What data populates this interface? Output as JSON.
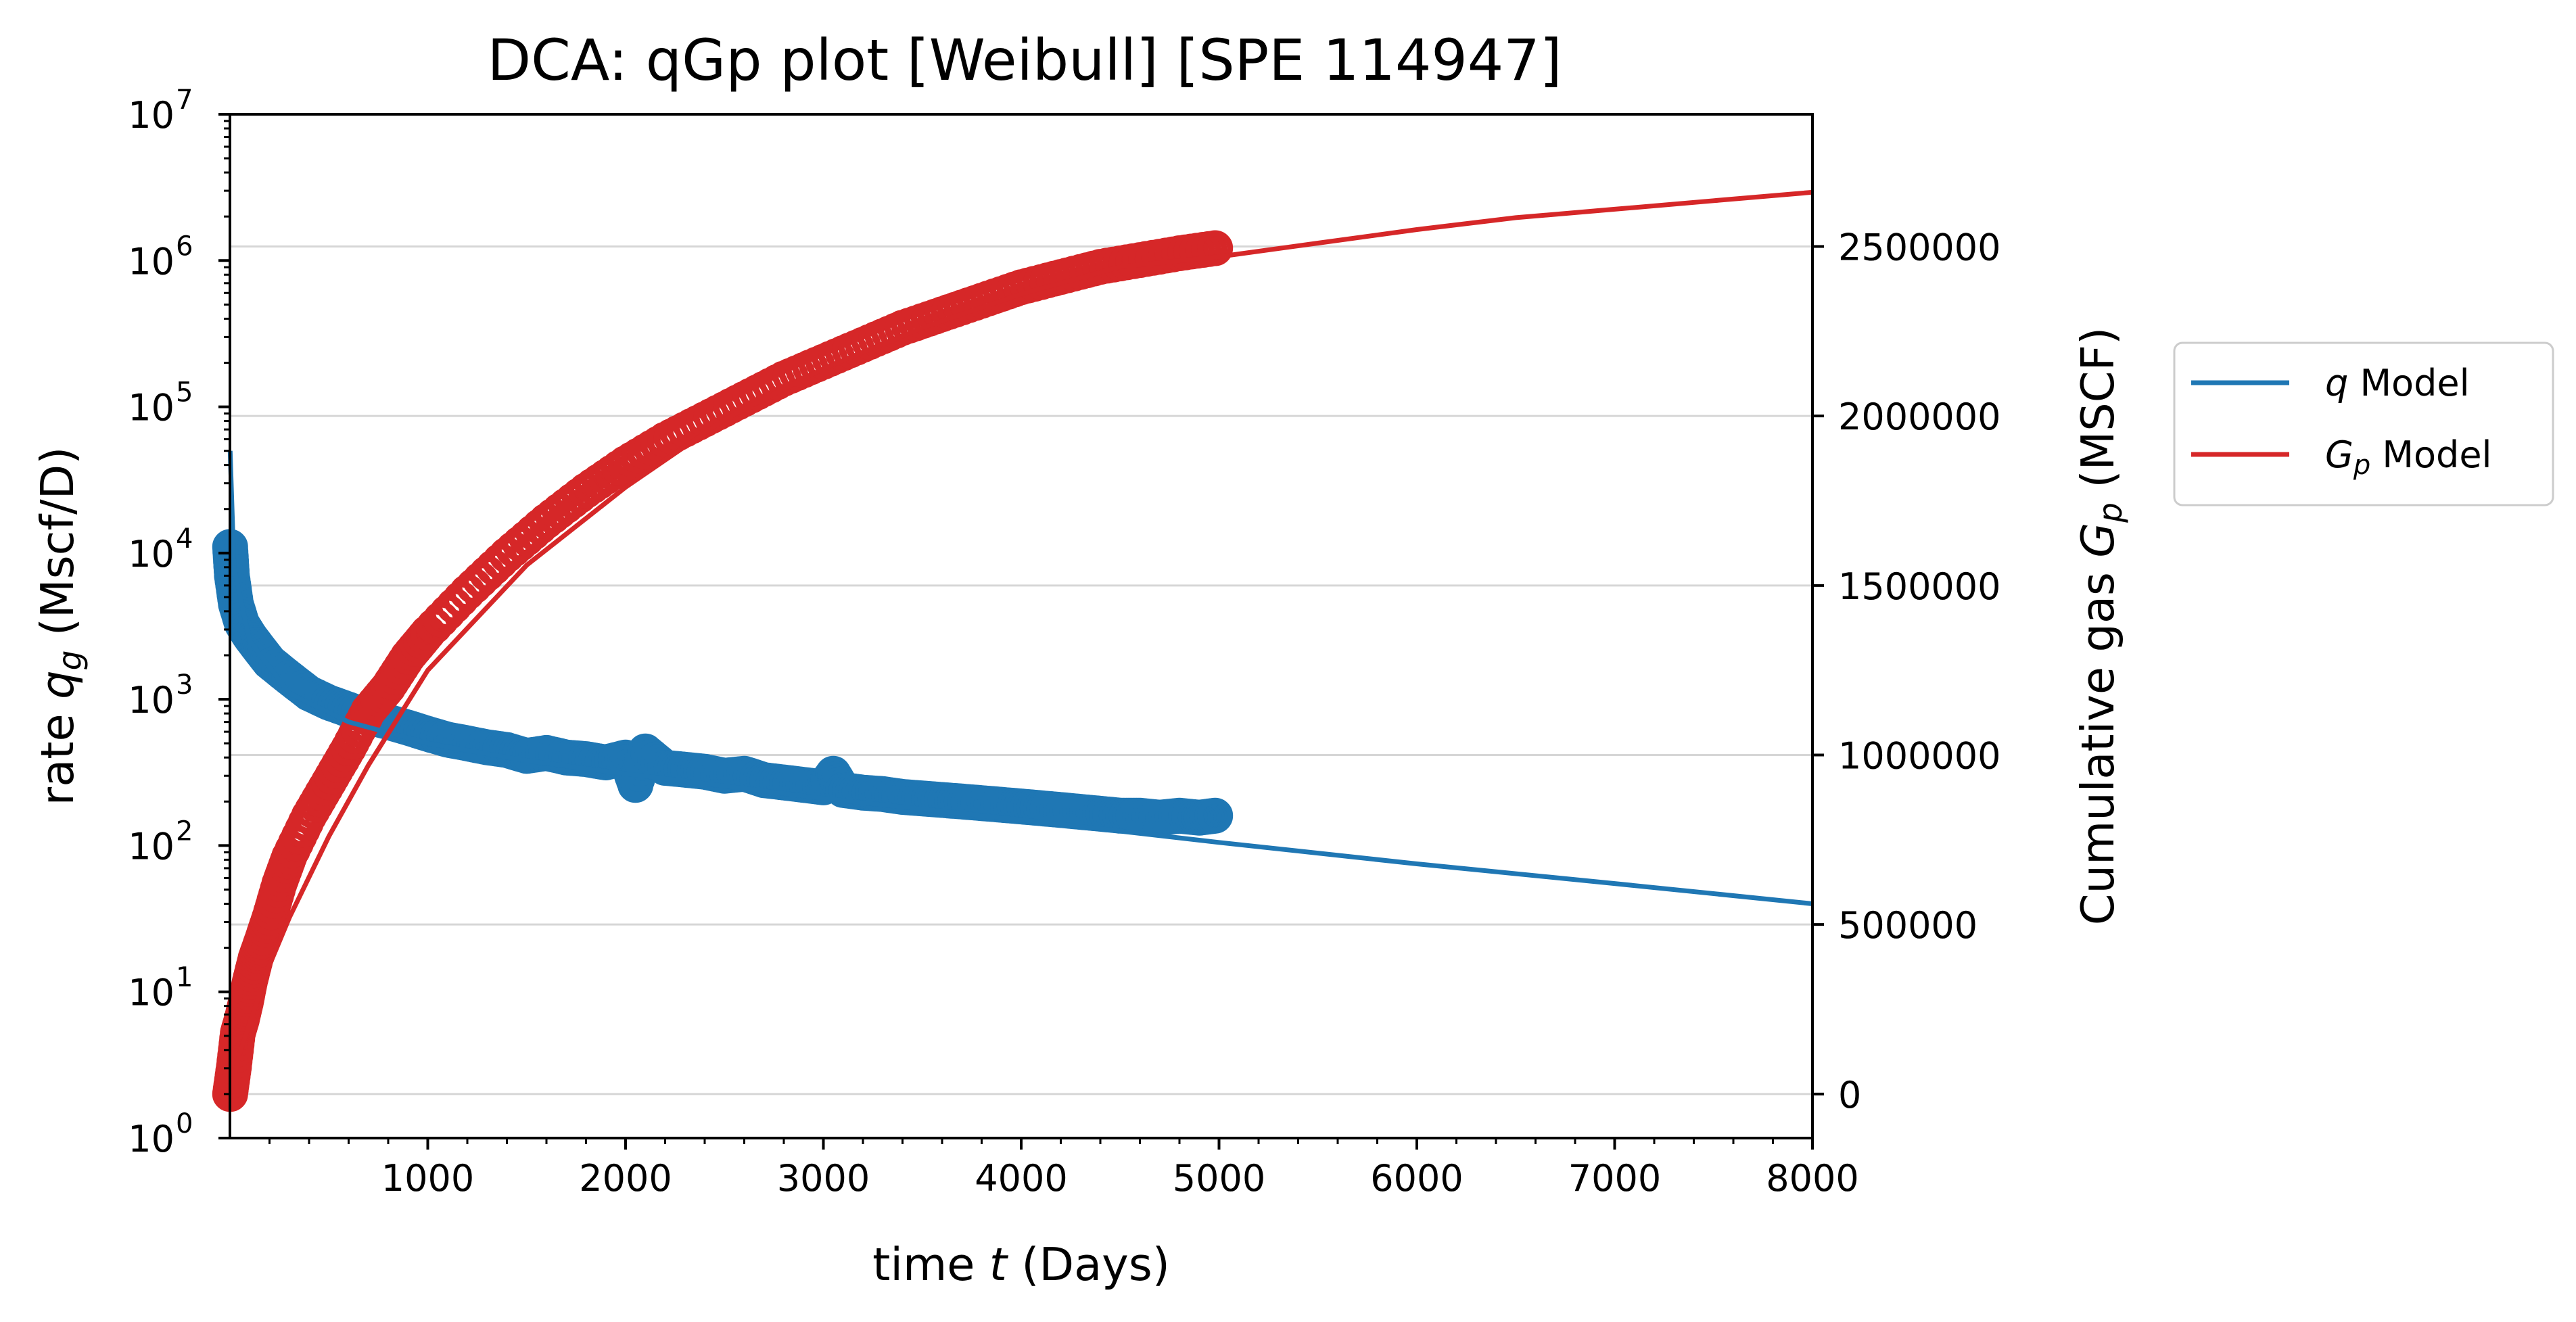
{
  "chart_data": {
    "type": "line",
    "title": "DCA: qGp plot  [Weibull]  [SPE 114947]",
    "xlabel": {
      "pre": "time ",
      "var": "t",
      "post": " (Days)"
    },
    "ylabel_left": {
      "pre": "rate ",
      "var": "q",
      "sub": "g",
      "post": " (Mscf/D)"
    },
    "ylabel_right": {
      "pre": "Cumulative gas ",
      "var": "G",
      "sub": "p",
      "post": " (MSCF)"
    },
    "x_ticks": [
      "1000",
      "2000",
      "3000",
      "4000",
      "5000",
      "6000",
      "7000",
      "8000"
    ],
    "y_left_ticks": [
      {
        "base": "10",
        "exp": "0"
      },
      {
        "base": "10",
        "exp": "1"
      },
      {
        "base": "10",
        "exp": "2"
      },
      {
        "base": "10",
        "exp": "3"
      },
      {
        "base": "10",
        "exp": "4"
      },
      {
        "base": "10",
        "exp": "5"
      },
      {
        "base": "10",
        "exp": "6"
      },
      {
        "base": "10",
        "exp": "7"
      }
    ],
    "y_right_ticks": [
      "0",
      "500000",
      "1000000",
      "1500000",
      "2000000",
      "2500000"
    ],
    "xlim": [
      0,
      8000
    ],
    "ylim_left": [
      1,
      10000000
    ],
    "ylim_left_scale": "log",
    "ylim_right": [
      -130000,
      2890000
    ],
    "grid": "horizontal (right axis)",
    "legend_position": "outside right",
    "legend": [
      {
        "var": "q",
        "sub": "",
        "text": " Model",
        "color": "#1f77b4"
      },
      {
        "var": "G",
        "sub": "p",
        "text": " Model",
        "color": "#d62728"
      }
    ],
    "series": [
      {
        "name": "q Model",
        "axis": "left",
        "style": "line",
        "color": "#1f77b4",
        "x": [
          1,
          20,
          100,
          300,
          600,
          1000,
          1500,
          2000,
          3000,
          4000,
          5000,
          6000,
          7000,
          8000
        ],
        "y": [
          50000,
          8000,
          2500,
          1100,
          700,
          500,
          380,
          310,
          210,
          150,
          105,
          75,
          55,
          40
        ]
      },
      {
        "name": "q data",
        "axis": "left",
        "style": "markers",
        "color": "#1f77b4",
        "x": [
          1,
          10,
          30,
          60,
          100,
          150,
          200,
          300,
          400,
          500,
          600,
          700,
          800,
          900,
          1000,
          1100,
          1200,
          1300,
          1400,
          1500,
          1600,
          1700,
          1800,
          1900,
          2000,
          2050,
          2100,
          2200,
          2300,
          2400,
          2500,
          2600,
          2700,
          2800,
          2900,
          3000,
          3050,
          3100,
          3200,
          3300,
          3400,
          3500,
          3600,
          3700,
          3800,
          3900,
          4000,
          4100,
          4200,
          4300,
          4400,
          4500,
          4600,
          4700,
          4800,
          4900,
          4980
        ],
        "y": [
          11000,
          7000,
          4500,
          3300,
          2700,
          2200,
          1800,
          1400,
          1100,
          950,
          850,
          760,
          700,
          640,
          580,
          530,
          500,
          470,
          450,
          410,
          430,
          400,
          390,
          370,
          400,
          260,
          440,
          340,
          330,
          320,
          300,
          310,
          280,
          270,
          260,
          250,
          310,
          240,
          230,
          225,
          215,
          210,
          205,
          200,
          195,
          190,
          185,
          180,
          175,
          170,
          165,
          160,
          160,
          155,
          160,
          155,
          160
        ]
      },
      {
        "name": "Gp Model",
        "axis": "right",
        "style": "line",
        "color": "#d62728",
        "x": [
          0,
          50,
          100,
          200,
          300,
          500,
          700,
          1000,
          1500,
          2000,
          2500,
          3000,
          3500,
          4000,
          4500,
          5000,
          5500,
          6000,
          6500,
          7000,
          7500,
          8000
        ],
        "y": [
          0,
          120000,
          210000,
          380000,
          520000,
          760000,
          970000,
          1250000,
          1560000,
          1790000,
          1990000,
          2140000,
          2260000,
          2360000,
          2440000,
          2470000,
          2510000,
          2550000,
          2585000,
          2610000,
          2635000,
          2660000
        ]
      },
      {
        "name": "Gp data",
        "axis": "right",
        "style": "markers",
        "color": "#d62728",
        "x": [
          1,
          20,
          40,
          60,
          80,
          100,
          130,
          160,
          200,
          250,
          300,
          400,
          500,
          600,
          700,
          800,
          900,
          1000,
          1200,
          1400,
          1600,
          1800,
          2000,
          2200,
          2400,
          2600,
          2800,
          3000,
          3200,
          3400,
          3600,
          3800,
          4000,
          4200,
          4400,
          4600,
          4800,
          4980
        ],
        "y": [
          0,
          80000,
          180000,
          220000,
          270000,
          330000,
          400000,
          450000,
          520000,
          620000,
          700000,
          820000,
          920000,
          1020000,
          1130000,
          1200000,
          1290000,
          1360000,
          1480000,
          1590000,
          1690000,
          1780000,
          1860000,
          1930000,
          1990000,
          2050000,
          2110000,
          2160000,
          2210000,
          2260000,
          2300000,
          2340000,
          2380000,
          2410000,
          2440000,
          2460000,
          2480000,
          2495000
        ]
      }
    ]
  }
}
